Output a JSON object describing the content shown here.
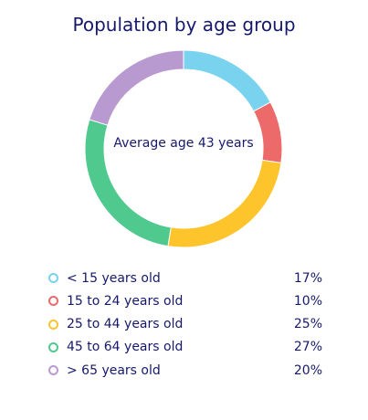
{
  "chart_data": {
    "type": "pie",
    "title": "Population by age group",
    "center_text": "Average age 43 years",
    "categories": [
      "< 15 years old",
      "15 to 24 years old",
      "25 to 44 years old",
      "45 to 64 years old",
      "> 65 years old"
    ],
    "values": [
      17,
      10,
      25,
      27,
      20
    ],
    "value_labels": [
      "17%",
      "10%",
      "25%",
      "27%",
      "20%"
    ],
    "colors": [
      "#79d3ef",
      "#ec6a6a",
      "#fdc42b",
      "#50c98f",
      "#b89ad0"
    ],
    "legend_position": "bottom",
    "donut": true
  }
}
